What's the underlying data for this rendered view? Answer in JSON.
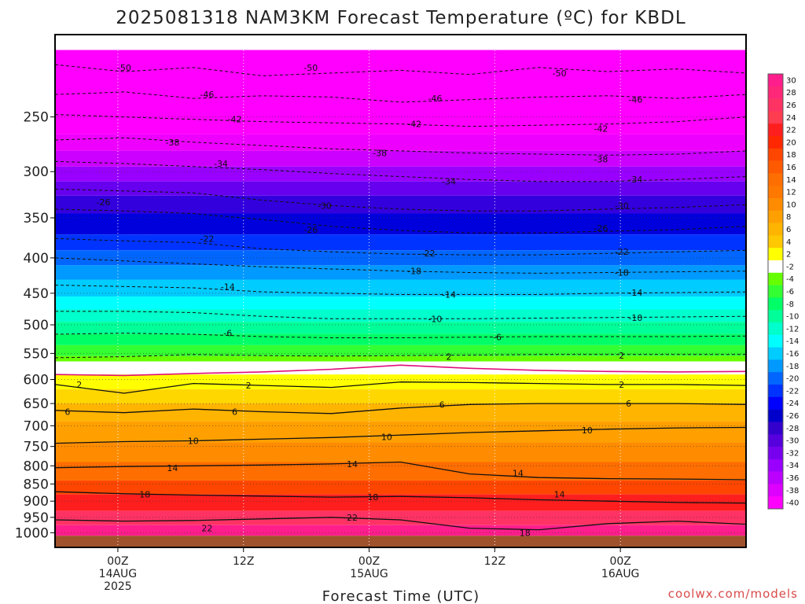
{
  "title": "2025081318 NAM3KM Forecast Temperature (ºC) for KBDL",
  "credit": "coolwx.com/models",
  "chart_data": {
    "type": "heatmap",
    "title": "2025081318 NAM3KM Forecast Temperature (ºC) for KBDL",
    "xlabel": "Forecast Time (UTC)",
    "ylabel": "",
    "y_scale": "log-pressure (hPa), decreasing upward",
    "ylim": [
      1050,
      190
    ],
    "y_ticks": [
      "250",
      "300",
      "350",
      "400",
      "450",
      "500",
      "550",
      "600",
      "650",
      "700",
      "750",
      "800",
      "850",
      "900",
      "950",
      "1000"
    ],
    "x_range": [
      "2025-08-13 18Z",
      "2025-08-16 12Z"
    ],
    "x_ticks": [
      {
        "line1": "00Z",
        "line2": "14AUG",
        "line3": "2025",
        "time": "2025-08-14 00Z"
      },
      {
        "line1": "12Z",
        "line2": "",
        "line3": "",
        "time": "2025-08-14 12Z"
      },
      {
        "line1": "00Z",
        "line2": "15AUG",
        "line3": "",
        "time": "2025-08-15 00Z"
      },
      {
        "line1": "12Z",
        "line2": "",
        "line3": "",
        "time": "2025-08-15 12Z"
      },
      {
        "line1": "00Z",
        "line2": "16AUG",
        "line3": "",
        "time": "2025-08-16 00Z"
      }
    ],
    "grid": true,
    "legend": "right colorbar",
    "colorbar": {
      "labels": [
        "30",
        "28",
        "26",
        "24",
        "22",
        "20",
        "18",
        "16",
        "14",
        "12",
        "10",
        "8",
        "6",
        "4",
        "2",
        "-2",
        "-4",
        "-6",
        "-8",
        "-10",
        "-12",
        "-14",
        "-16",
        "-18",
        "-20",
        "-22",
        "-24",
        "-26",
        "-28",
        "-30",
        "-32",
        "-34",
        "-36",
        "-38",
        "-40"
      ],
      "colors": [
        "#ff1e8c",
        "#ff2878",
        "#ff3264",
        "#ff3c50",
        "#ff1e1e",
        "#ff2800",
        "#ff4600",
        "#ff5a00",
        "#ff6e00",
        "#ff7800",
        "#ff8c00",
        "#ffa000",
        "#ffb400",
        "#ffc800",
        "#ffff00",
        "#ffffff",
        "#66ff00",
        "#33ff33",
        "#00ff66",
        "#00ff99",
        "#00ffcc",
        "#00ffff",
        "#00ccff",
        "#0099ff",
        "#0066ff",
        "#0033ff",
        "#0000ff",
        "#0000cc",
        "#3300cc",
        "#5500dd",
        "#7700ee",
        "#9900ff",
        "#bb00ff",
        "#dd00ff",
        "#ff00ff"
      ]
    },
    "bands": [
      {
        "from_hpa": 200,
        "to_hpa": 265,
        "color": "#ff00ff"
      },
      {
        "from_hpa": 265,
        "to_hpa": 280,
        "color": "#ee00ff"
      },
      {
        "from_hpa": 280,
        "to_hpa": 295,
        "color": "#cc00ff"
      },
      {
        "from_hpa": 295,
        "to_hpa": 310,
        "color": "#9900ff"
      },
      {
        "from_hpa": 310,
        "to_hpa": 325,
        "color": "#6600ee"
      },
      {
        "from_hpa": 325,
        "to_hpa": 345,
        "color": "#3300dd"
      },
      {
        "from_hpa": 345,
        "to_hpa": 370,
        "color": "#0000dd"
      },
      {
        "from_hpa": 370,
        "to_hpa": 390,
        "color": "#0033ff"
      },
      {
        "from_hpa": 390,
        "to_hpa": 410,
        "color": "#0066ff"
      },
      {
        "from_hpa": 410,
        "to_hpa": 430,
        "color": "#0099ff"
      },
      {
        "from_hpa": 430,
        "to_hpa": 455,
        "color": "#00ccff"
      },
      {
        "from_hpa": 455,
        "to_hpa": 475,
        "color": "#00ffff"
      },
      {
        "from_hpa": 475,
        "to_hpa": 495,
        "color": "#00ffcc"
      },
      {
        "from_hpa": 495,
        "to_hpa": 515,
        "color": "#00ff99"
      },
      {
        "from_hpa": 515,
        "to_hpa": 535,
        "color": "#00ff66"
      },
      {
        "from_hpa": 535,
        "to_hpa": 555,
        "color": "#33ff33"
      },
      {
        "from_hpa": 555,
        "to_hpa": 565,
        "color": "#66ff00"
      },
      {
        "from_hpa": 565,
        "to_hpa": 590,
        "color": "#ffffff"
      },
      {
        "from_hpa": 590,
        "to_hpa": 620,
        "color": "#ffff00"
      },
      {
        "from_hpa": 620,
        "to_hpa": 650,
        "color": "#ffd700"
      },
      {
        "from_hpa": 650,
        "to_hpa": 690,
        "color": "#ffb400"
      },
      {
        "from_hpa": 690,
        "to_hpa": 740,
        "color": "#ffa000"
      },
      {
        "from_hpa": 740,
        "to_hpa": 790,
        "color": "#ff8c00"
      },
      {
        "from_hpa": 790,
        "to_hpa": 840,
        "color": "#ff6e00"
      },
      {
        "from_hpa": 840,
        "to_hpa": 880,
        "color": "#ff4600"
      },
      {
        "from_hpa": 880,
        "to_hpa": 930,
        "color": "#ff1e1e"
      },
      {
        "from_hpa": 930,
        "to_hpa": 975,
        "color": "#ff3264"
      },
      {
        "from_hpa": 975,
        "to_hpa": 1010,
        "color": "#ff1e8c"
      },
      {
        "from_hpa": 1010,
        "to_hpa": 1050,
        "color": "#a0522d"
      }
    ],
    "isotherms": [
      {
        "temp": -50,
        "style": "dashed",
        "hpa": [
          210,
          215,
          212,
          218,
          216,
          214,
          217,
          212,
          215,
          213,
          216
        ]
      },
      {
        "temp": -46,
        "style": "dashed",
        "hpa": [
          232,
          230,
          235,
          233,
          234,
          238,
          236,
          234,
          233,
          235,
          232
        ]
      },
      {
        "temp": -42,
        "style": "dashed",
        "hpa": [
          248,
          250,
          252,
          254,
          255,
          256,
          258,
          257,
          256,
          254,
          250
        ]
      },
      {
        "temp": -38,
        "style": "dashed",
        "hpa": [
          270,
          268,
          272,
          275,
          278,
          280,
          282,
          283,
          284,
          283,
          280
        ]
      },
      {
        "temp": -34,
        "style": "dashed",
        "hpa": [
          290,
          292,
          295,
          298,
          302,
          305,
          308,
          310,
          310,
          308,
          305
        ]
      },
      {
        "temp": -30,
        "style": "dashed",
        "hpa": [
          318,
          320,
          322,
          330,
          336,
          340,
          342,
          342,
          340,
          338,
          335
        ]
      },
      {
        "temp": -26,
        "style": "dashed",
        "hpa": [
          340,
          342,
          345,
          352,
          360,
          365,
          368,
          368,
          366,
          364,
          360
        ]
      },
      {
        "temp": -22,
        "style": "dashed",
        "hpa": [
          375,
          378,
          380,
          388,
          392,
          395,
          396,
          396,
          394,
          392,
          390
        ]
      },
      {
        "temp": -18,
        "style": "dashed",
        "hpa": [
          400,
          404,
          408,
          412,
          415,
          418,
          420,
          421,
          420,
          419,
          418
        ]
      },
      {
        "temp": -14,
        "style": "dashed",
        "hpa": [
          438,
          440,
          442,
          448,
          450,
          452,
          452,
          452,
          450,
          449,
          448
        ]
      },
      {
        "temp": -10,
        "style": "dashed",
        "hpa": [
          478,
          478,
          480,
          486,
          490,
          490,
          490,
          489,
          488,
          487,
          486
        ]
      },
      {
        "temp": -6,
        "style": "dashed",
        "hpa": [
          516,
          514,
          516,
          520,
          522,
          522,
          521,
          520,
          520,
          520,
          519
        ]
      },
      {
        "temp": -2,
        "style": "dashed",
        "hpa": [
          558,
          556,
          552,
          554,
          555,
          554,
          553,
          552,
          552,
          552,
          552
        ]
      },
      {
        "temp": 0,
        "style": "freezing",
        "hpa": [
          590,
          592,
          588,
          585,
          580,
          572,
          578,
          582,
          584,
          585,
          584
        ]
      },
      {
        "temp": 2,
        "style": "solid",
        "hpa": [
          610,
          628,
          608,
          612,
          616,
          605,
          606,
          608,
          610,
          610,
          612
        ]
      },
      {
        "temp": 6,
        "style": "solid",
        "hpa": [
          665,
          670,
          662,
          668,
          672,
          660,
          652,
          650,
          650,
          650,
          652
        ]
      },
      {
        "temp": 10,
        "style": "solid",
        "hpa": [
          742,
          738,
          736,
          732,
          728,
          722,
          716,
          712,
          708,
          705,
          704
        ]
      },
      {
        "temp": 14,
        "style": "solid",
        "hpa": [
          805,
          802,
          800,
          798,
          795,
          790,
          822,
          832,
          835,
          836,
          838
        ]
      },
      {
        "temp": 18,
        "style": "solid",
        "hpa": [
          872,
          878,
          882,
          885,
          888,
          886,
          890,
          896,
          900,
          904,
          906
        ]
      },
      {
        "temp": 22,
        "style": "solid",
        "hpa": [
          958,
          962,
          960,
          955,
          950,
          958,
          985,
          990,
          970,
          962,
          972
        ]
      }
    ],
    "isotherm_labels": [
      {
        "text": "-50",
        "time_frac": 0.1,
        "hpa": 212
      },
      {
        "text": "-50",
        "time_frac": 0.37,
        "hpa": 212
      },
      {
        "text": "-50",
        "time_frac": 0.73,
        "hpa": 216
      },
      {
        "text": "-46",
        "time_frac": 0.22,
        "hpa": 232
      },
      {
        "text": "-46",
        "time_frac": 0.55,
        "hpa": 235
      },
      {
        "text": "-46",
        "time_frac": 0.84,
        "hpa": 236
      },
      {
        "text": "-42",
        "time_frac": 0.26,
        "hpa": 252
      },
      {
        "text": "-42",
        "time_frac": 0.52,
        "hpa": 256
      },
      {
        "text": "-42",
        "time_frac": 0.79,
        "hpa": 260
      },
      {
        "text": "-38",
        "time_frac": 0.17,
        "hpa": 272
      },
      {
        "text": "-38",
        "time_frac": 0.47,
        "hpa": 282
      },
      {
        "text": "-38",
        "time_frac": 0.79,
        "hpa": 288
      },
      {
        "text": "-34",
        "time_frac": 0.24,
        "hpa": 292
      },
      {
        "text": "-34",
        "time_frac": 0.57,
        "hpa": 310
      },
      {
        "text": "-34",
        "time_frac": 0.84,
        "hpa": 308
      },
      {
        "text": "-30",
        "time_frac": 0.39,
        "hpa": 336
      },
      {
        "text": "-30",
        "time_frac": 0.82,
        "hpa": 336
      },
      {
        "text": "-26",
        "time_frac": 0.07,
        "hpa": 332
      },
      {
        "text": "-26",
        "time_frac": 0.37,
        "hpa": 364
      },
      {
        "text": "-26",
        "time_frac": 0.79,
        "hpa": 362
      },
      {
        "text": "-22",
        "time_frac": 0.22,
        "hpa": 375
      },
      {
        "text": "-22",
        "time_frac": 0.54,
        "hpa": 394
      },
      {
        "text": "-22",
        "time_frac": 0.82,
        "hpa": 392
      },
      {
        "text": "-18",
        "time_frac": 0.52,
        "hpa": 418
      },
      {
        "text": "-18",
        "time_frac": 0.82,
        "hpa": 420
      },
      {
        "text": "-14",
        "time_frac": 0.25,
        "hpa": 440
      },
      {
        "text": "-14",
        "time_frac": 0.57,
        "hpa": 452
      },
      {
        "text": "-14",
        "time_frac": 0.84,
        "hpa": 449
      },
      {
        "text": "-10",
        "time_frac": 0.55,
        "hpa": 490
      },
      {
        "text": "-10",
        "time_frac": 0.84,
        "hpa": 488
      },
      {
        "text": "-6",
        "time_frac": 0.25,
        "hpa": 514
      },
      {
        "text": "-6",
        "time_frac": 0.64,
        "hpa": 521
      },
      {
        "text": "2",
        "time_frac": 0.035,
        "hpa": 610
      },
      {
        "text": "2",
        "time_frac": 0.28,
        "hpa": 612
      },
      {
        "text": "2",
        "time_frac": 0.57,
        "hpa": 556
      },
      {
        "text": "2",
        "time_frac": 0.82,
        "hpa": 554
      },
      {
        "text": "2",
        "time_frac": 0.82,
        "hpa": 610
      },
      {
        "text": "6",
        "time_frac": 0.018,
        "hpa": 668
      },
      {
        "text": "6",
        "time_frac": 0.26,
        "hpa": 668
      },
      {
        "text": "6",
        "time_frac": 0.56,
        "hpa": 652
      },
      {
        "text": "6",
        "time_frac": 0.83,
        "hpa": 650
      },
      {
        "text": "10",
        "time_frac": 0.2,
        "hpa": 736
      },
      {
        "text": "10",
        "time_frac": 0.48,
        "hpa": 726
      },
      {
        "text": "10",
        "time_frac": 0.77,
        "hpa": 710
      },
      {
        "text": "14",
        "time_frac": 0.17,
        "hpa": 806
      },
      {
        "text": "14",
        "time_frac": 0.43,
        "hpa": 795
      },
      {
        "text": "14",
        "time_frac": 0.67,
        "hpa": 820
      },
      {
        "text": "14",
        "time_frac": 0.73,
        "hpa": 880
      },
      {
        "text": "18",
        "time_frac": 0.13,
        "hpa": 880
      },
      {
        "text": "18",
        "time_frac": 0.46,
        "hpa": 888
      },
      {
        "text": "18",
        "time_frac": 0.68,
        "hpa": 1000
      },
      {
        "text": "22",
        "time_frac": 0.43,
        "hpa": 950
      },
      {
        "text": "22",
        "time_frac": 0.22,
        "hpa": 985
      }
    ]
  }
}
